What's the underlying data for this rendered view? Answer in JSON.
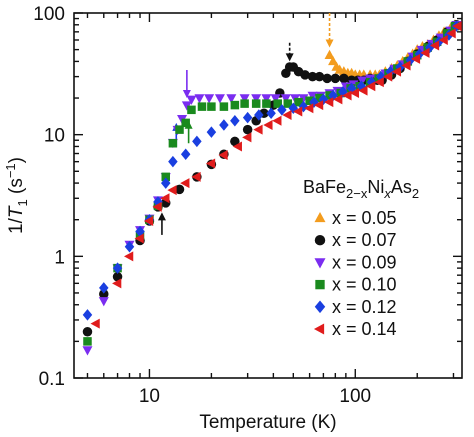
{
  "chart_data": {
    "type": "scatter",
    "title": "",
    "xlabel": "Temperature (K)",
    "ylabel_parts": [
      "1/",
      "T",
      "1",
      " (s",
      "−1",
      ")"
    ],
    "xscale": "log",
    "yscale": "log",
    "xlim": [
      4.3,
      330
    ],
    "ylim": [
      0.1,
      100
    ],
    "x_ticks": [
      {
        "value": 10,
        "label": "10"
      },
      {
        "value": 100,
        "label": "100"
      }
    ],
    "y_ticks": [
      {
        "value": 0.1,
        "label": "0.1"
      },
      {
        "value": 1,
        "label": "1"
      },
      {
        "value": 10,
        "label": "10"
      },
      {
        "value": 100,
        "label": "100"
      }
    ],
    "legend_title_parts": [
      "BaFe",
      "2−x",
      "Ni",
      "x",
      "As",
      "2"
    ],
    "legend_position": "right",
    "series": [
      {
        "name": "x = 0.05",
        "color": "#f39c1e",
        "marker": "triangle-up",
        "points": [
          [
            75,
            45
          ],
          [
            78,
            40
          ],
          [
            81,
            36
          ],
          [
            84,
            34
          ],
          [
            88,
            33
          ],
          [
            92,
            32
          ],
          [
            96,
            32
          ],
          [
            100,
            31
          ],
          [
            105,
            31
          ],
          [
            110,
            31
          ],
          [
            118,
            31
          ],
          [
            125,
            31
          ],
          [
            131,
            31
          ],
          [
            140,
            33
          ],
          [
            150,
            35
          ],
          [
            160,
            37
          ],
          [
            170,
            40
          ],
          [
            180,
            43
          ],
          [
            190,
            46
          ],
          [
            200,
            50
          ],
          [
            212,
            53
          ],
          [
            225,
            55
          ],
          [
            240,
            60
          ],
          [
            255,
            65
          ],
          [
            270,
            70
          ],
          [
            290,
            75
          ],
          [
            305,
            80
          ]
        ]
      },
      {
        "name": "x = 0.07",
        "color": "#111111",
        "marker": "circle",
        "points": [
          [
            5,
            0.24
          ],
          [
            6,
            0.49
          ],
          [
            7,
            0.68
          ],
          [
            9,
            1.35
          ],
          [
            10,
            1.95
          ],
          [
            11,
            2.55
          ],
          [
            12,
            2.75
          ],
          [
            14,
            3.55
          ],
          [
            17,
            4.5
          ],
          [
            20,
            5.7
          ],
          [
            23,
            6.9
          ],
          [
            26,
            8.8
          ],
          [
            30,
            11.0
          ],
          [
            33,
            13.0
          ],
          [
            36,
            15.0
          ],
          [
            40,
            17.5
          ],
          [
            43,
            22
          ],
          [
            46,
            32
          ],
          [
            48,
            36
          ],
          [
            50,
            36
          ],
          [
            53,
            33
          ],
          [
            57,
            31
          ],
          [
            62,
            30
          ],
          [
            67,
            30
          ],
          [
            73,
            29
          ],
          [
            80,
            29
          ],
          [
            88,
            29
          ],
          [
            96,
            28
          ],
          [
            103,
            28
          ],
          [
            110,
            28
          ],
          [
            118,
            29
          ],
          [
            128,
            28
          ],
          [
            135,
            28
          ],
          [
            150,
            31
          ],
          [
            165,
            35
          ],
          [
            180,
            40
          ],
          [
            200,
            46
          ],
          [
            225,
            53
          ],
          [
            250,
            60
          ],
          [
            280,
            70
          ],
          [
            310,
            80
          ]
        ]
      },
      {
        "name": "x = 0.09",
        "color": "#7b2df0",
        "marker": "triangle-down",
        "points": [
          [
            5,
            0.17
          ],
          [
            6,
            0.43
          ],
          [
            7,
            0.8
          ],
          [
            8,
            1.25
          ],
          [
            9,
            1.65
          ],
          [
            10,
            2.05
          ],
          [
            11,
            2.9
          ],
          [
            12,
            4.5
          ],
          [
            13,
            8.6
          ],
          [
            13.7,
            11.0
          ],
          [
            14.4,
            13.5
          ],
          [
            15.2,
            17.5
          ],
          [
            16,
            19.5
          ],
          [
            17.5,
            20
          ],
          [
            19.5,
            20
          ],
          [
            22,
            20
          ],
          [
            25,
            20
          ],
          [
            29,
            20
          ],
          [
            33,
            20
          ],
          [
            37,
            20
          ],
          [
            41,
            20
          ],
          [
            46,
            20
          ],
          [
            51,
            20
          ],
          [
            56,
            20
          ],
          [
            62,
            21
          ],
          [
            68,
            21
          ],
          [
            75,
            22
          ],
          [
            82,
            23
          ],
          [
            90,
            25
          ],
          [
            98,
            26
          ],
          [
            108,
            28
          ],
          [
            118,
            29
          ],
          [
            128,
            29
          ],
          [
            140,
            32
          ],
          [
            155,
            35
          ],
          [
            170,
            38
          ],
          [
            190,
            44
          ],
          [
            210,
            50
          ],
          [
            235,
            56
          ],
          [
            260,
            63
          ],
          [
            290,
            72
          ],
          [
            310,
            80
          ]
        ]
      },
      {
        "name": "x = 0.10",
        "color": "#1a8a1e",
        "marker": "square",
        "points": [
          [
            5,
            0.2
          ],
          [
            7,
            0.8
          ],
          [
            9,
            1.5
          ],
          [
            10,
            2.0
          ],
          [
            11,
            2.6
          ],
          [
            12,
            4.5
          ],
          [
            13,
            8.5
          ],
          [
            14,
            11.0
          ],
          [
            15,
            12.5
          ],
          [
            16,
            16
          ],
          [
            18,
            17
          ],
          [
            20,
            17
          ],
          [
            23,
            17
          ],
          [
            26,
            17.5
          ],
          [
            29,
            18
          ],
          [
            33,
            18
          ],
          [
            37,
            18
          ],
          [
            42,
            18
          ],
          [
            47,
            18
          ],
          [
            53,
            18.5
          ],
          [
            60,
            19
          ],
          [
            67,
            20
          ],
          [
            75,
            21
          ],
          [
            85,
            22
          ],
          [
            95,
            24
          ],
          [
            105,
            25
          ],
          [
            118,
            27
          ],
          [
            130,
            29
          ],
          [
            145,
            32
          ],
          [
            160,
            35
          ],
          [
            180,
            40
          ],
          [
            200,
            45
          ],
          [
            225,
            52
          ],
          [
            250,
            58
          ],
          [
            280,
            68
          ],
          [
            305,
            78
          ]
        ]
      },
      {
        "name": "x = 0.12",
        "color": "#1a3fe0",
        "marker": "diamond",
        "points": [
          [
            5,
            0.33
          ],
          [
            6,
            0.55
          ],
          [
            7,
            0.8
          ],
          [
            8,
            1.2
          ],
          [
            9,
            1.6
          ],
          [
            10,
            2.0
          ],
          [
            11,
            2.8
          ],
          [
            12,
            4.0
          ],
          [
            13,
            6.0
          ],
          [
            15,
            6.9
          ],
          [
            17,
            8.8
          ],
          [
            20,
            10.5
          ],
          [
            23,
            12.0
          ],
          [
            26,
            13.0
          ],
          [
            30,
            13.8
          ],
          [
            34,
            14.5
          ],
          [
            39,
            15
          ],
          [
            44,
            16
          ],
          [
            50,
            16.5
          ],
          [
            56,
            17
          ],
          [
            63,
            18.5
          ],
          [
            70,
            19.5
          ],
          [
            78,
            21
          ],
          [
            87,
            22.5
          ],
          [
            96,
            24
          ],
          [
            107,
            25
          ],
          [
            120,
            27
          ],
          [
            133,
            30
          ],
          [
            148,
            33
          ],
          [
            165,
            36
          ],
          [
            185,
            41
          ],
          [
            205,
            46
          ],
          [
            230,
            52
          ],
          [
            255,
            58
          ],
          [
            285,
            66
          ],
          [
            310,
            78
          ]
        ]
      },
      {
        "name": "x = 0.14",
        "color": "#e01c1c",
        "marker": "triangle-left",
        "points": [
          [
            5.5,
            0.28
          ],
          [
            7,
            0.6
          ],
          [
            8,
            1.0
          ],
          [
            9,
            1.4
          ],
          [
            10,
            1.95
          ],
          [
            11,
            2.55
          ],
          [
            12,
            3.0
          ],
          [
            13,
            3.5
          ],
          [
            15,
            4.0
          ],
          [
            17,
            4.5
          ],
          [
            20,
            5.8
          ],
          [
            23,
            6.8
          ],
          [
            27,
            8.0
          ],
          [
            30,
            9.5
          ],
          [
            34,
            11.0
          ],
          [
            38,
            12.0
          ],
          [
            42,
            13.0
          ],
          [
            47,
            14.5
          ],
          [
            53,
            15.5
          ],
          [
            60,
            16.5
          ],
          [
            67,
            17.5
          ],
          [
            75,
            18.5
          ],
          [
            83,
            19.5
          ],
          [
            92,
            21
          ],
          [
            100,
            22
          ],
          [
            110,
            23
          ],
          [
            120,
            25
          ],
          [
            132,
            27
          ],
          [
            145,
            30
          ],
          [
            160,
            33
          ],
          [
            178,
            37
          ],
          [
            198,
            42
          ],
          [
            220,
            47
          ],
          [
            245,
            54
          ],
          [
            270,
            60
          ],
          [
            295,
            68
          ],
          [
            315,
            78
          ]
        ]
      }
    ],
    "annotations": [
      {
        "type": "arrow",
        "style": "dashed",
        "x": 75,
        "y_from": 100,
        "y_to": 52,
        "color": "#f39c1e"
      },
      {
        "type": "arrow",
        "style": "dashed",
        "x": 48,
        "y_from": 57,
        "y_to": 40,
        "color": "#111111"
      },
      {
        "type": "arrow",
        "style": "solid",
        "x": 15.2,
        "y_from": 34,
        "y_to": 20,
        "color": "#7b2df0"
      },
      {
        "type": "arrow",
        "style": "solid",
        "x": 13.5,
        "y_from": 8.0,
        "y_to": 12.5,
        "color": "#1a3fe0"
      },
      {
        "type": "arrow",
        "style": "solid",
        "x": 15.5,
        "y_from": 8.5,
        "y_to": 13.0,
        "color": "#1a8a1e"
      },
      {
        "type": "arrow",
        "style": "solid",
        "x": 11.5,
        "y_from": 1.5,
        "y_to": 2.3,
        "color": "#111111"
      }
    ]
  }
}
